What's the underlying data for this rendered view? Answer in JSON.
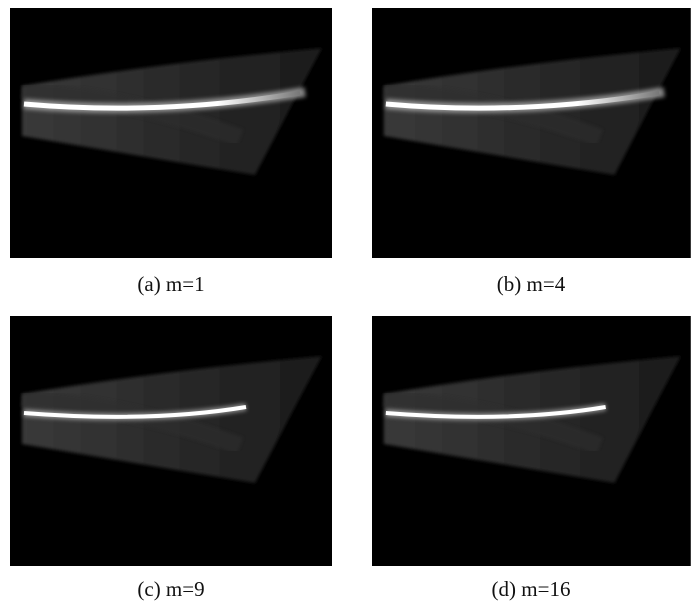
{
  "panels": [
    {
      "caption": "(a) m=1"
    },
    {
      "caption": "(b) m=4"
    },
    {
      "caption": "(c) m=9"
    },
    {
      "caption": "(d) m=16"
    }
  ]
}
